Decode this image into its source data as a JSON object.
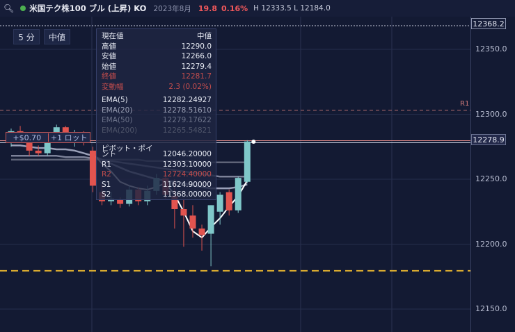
{
  "header": {
    "title": "米国テク株100 ブル (上昇) KO",
    "date": "2023年8月",
    "change": "19.8",
    "change_pct": "0.16%",
    "high_low": "H 12333.5 L 12184.0",
    "colors": {
      "up": "#f2585b",
      "status_dot": "#4caf50"
    }
  },
  "toolbar": {
    "timeframe": "5 分",
    "price_type": "中値"
  },
  "info_panel": {
    "header_left": "現在値",
    "header_right": "中値",
    "rows": [
      {
        "label": "高値",
        "value": "12290.0",
        "style": "normal"
      },
      {
        "label": "安値",
        "value": "12266.0",
        "style": "normal"
      },
      {
        "label": "始値",
        "value": "12279.4",
        "style": "normal"
      },
      {
        "label": "終値",
        "value": "12281.7",
        "style": "red"
      },
      {
        "label": "変動幅",
        "value": "2.3 (0.02%)",
        "style": "red"
      }
    ],
    "ema_rows": [
      {
        "label": "EMA(5)",
        "value": "12282.24927",
        "style": "bright"
      },
      {
        "label": "EMA(20)",
        "value": "12278.51610",
        "style": "dim"
      },
      {
        "label": "EMA(50)",
        "value": "12279.17622",
        "style": "dimmer"
      },
      {
        "label": "EMA(200)",
        "value": "12265.54821",
        "style": "dimmest"
      }
    ],
    "pivot_label_1": "ピボット・ポイ",
    "pivot_label_2": "ント",
    "pivot_value": "12046.20000",
    "pivot_rows": [
      {
        "label": "R1",
        "value": "12303.10000",
        "style": "normal"
      },
      {
        "label": "R2",
        "value": "12724.40000",
        "style": "red"
      },
      {
        "label": "S1",
        "value": "11624.90000",
        "style": "normal"
      },
      {
        "label": "S2",
        "value": "11368.00000",
        "style": "normal"
      }
    ]
  },
  "position": {
    "pnl": "+$0.70",
    "lots": "+1 ロット"
  },
  "price_axis": {
    "top_tag": "12368.2",
    "current_tag": "12278.9",
    "r1_label": "R1"
  },
  "chart_data": {
    "type": "candlestick",
    "title": "",
    "ylim": [
      12130,
      12375
    ],
    "y_ticks": [
      12350.0,
      12300.0,
      12250.0,
      12200.0,
      12150.0
    ],
    "candles": [
      {
        "open": 12282,
        "high": 12289,
        "low": 12275,
        "close": 12287
      },
      {
        "open": 12287,
        "high": 12291,
        "low": 12280,
        "close": 12283
      },
      {
        "open": 12278,
        "high": 12282,
        "low": 12268,
        "close": 12272
      },
      {
        "open": 12272,
        "high": 12276,
        "low": 12268,
        "close": 12270
      },
      {
        "open": 12270,
        "high": 12284,
        "low": 12268,
        "close": 12282
      },
      {
        "open": 12281,
        "high": 12292,
        "low": 12278,
        "close": 12290
      },
      {
        "open": 12290,
        "high": 12291,
        "low": 12281,
        "close": 12282
      },
      {
        "open": 12282,
        "high": 12288,
        "low": 12275,
        "close": 12286
      },
      {
        "open": 12286,
        "high": 12287,
        "low": 12276,
        "close": 12278
      },
      {
        "open": 12272,
        "high": 12275,
        "low": 12240,
        "close": 12245
      },
      {
        "open": 12240,
        "high": 12246,
        "low": 12230,
        "close": 12233
      },
      {
        "open": 12233,
        "high": 12240,
        "low": 12230,
        "close": 12235
      },
      {
        "open": 12234,
        "high": 12236,
        "low": 12228,
        "close": 12231
      },
      {
        "open": 12231,
        "high": 12245,
        "low": 12229,
        "close": 12242
      },
      {
        "open": 12242,
        "high": 12244,
        "low": 12230,
        "close": 12233
      },
      {
        "open": 12233,
        "high": 12245,
        "low": 12230,
        "close": 12241
      },
      {
        "open": 12241,
        "high": 12254,
        "low": 12238,
        "close": 12251
      },
      {
        "open": 12251,
        "high": 12253,
        "low": 12235,
        "close": 12238
      },
      {
        "open": 12237,
        "high": 12250,
        "low": 12212,
        "close": 12227
      },
      {
        "open": 12227,
        "high": 12235,
        "low": 12198,
        "close": 12222
      },
      {
        "open": 12222,
        "high": 12230,
        "low": 12205,
        "close": 12212
      },
      {
        "open": 12212,
        "high": 12215,
        "low": 12195,
        "close": 12207
      },
      {
        "open": 12208,
        "high": 12230,
        "low": 12183,
        "close": 12230
      },
      {
        "open": 12225,
        "high": 12240,
        "low": 12215,
        "close": 12238
      },
      {
        "open": 12240,
        "high": 12242,
        "low": 12222,
        "close": 12226
      },
      {
        "open": 12226,
        "high": 12252,
        "low": 12224,
        "close": 12251
      },
      {
        "open": 12248,
        "high": 12280,
        "low": 12247,
        "close": 12279
      }
    ],
    "lines": {
      "r1": 12303.1,
      "stop": 12179.5,
      "current": 12278.9,
      "top_marker": 12368.2
    },
    "ema": [
      {
        "name": "EMA(5)",
        "color": "#ffffff",
        "values": [
          null,
          null,
          null,
          null,
          null,
          null,
          null,
          null,
          null,
          12270,
          12262,
          12256,
          12248,
          12245,
          12243,
          12242,
          12244,
          12247,
          12238,
          12225,
          12210,
          12205,
          12213,
          12220,
          12229,
          12237,
          12249
        ]
      },
      {
        "name": "EMA(20)",
        "color": "#9aa0b8",
        "values": [
          12276,
          12276,
          12275,
          12274,
          12274,
          12273,
          12273,
          12272,
          12270,
          12268,
          12265,
          12262,
          12259,
          12256,
          12254,
          12252,
          12250,
          12249,
          12248,
          12247,
          12245,
          12244,
          12243,
          12243,
          12243,
          12244,
          12246
        ]
      },
      {
        "name": "EMA(50)",
        "color": "#7d8299",
        "values": [
          12268,
          12268,
          12268,
          12268,
          12268,
          12268,
          12267,
          12267,
          12267,
          12266,
          12265,
          12264,
          12263,
          12262,
          12261,
          12260,
          12259,
          12258,
          12257,
          12256,
          12255,
          12254,
          12253,
          12252,
          12252,
          12252,
          12252
        ]
      },
      {
        "name": "EMA(200)",
        "color": "#5f6478",
        "values": [
          12265,
          12265,
          12265,
          12265,
          12265,
          12265,
          12265,
          12265,
          12265,
          12265,
          12265,
          12265,
          12265,
          12265,
          12265,
          12264,
          12264,
          12264,
          12264,
          12264,
          12264,
          12263,
          12263,
          12263,
          12263,
          12263,
          12263
        ]
      }
    ]
  }
}
